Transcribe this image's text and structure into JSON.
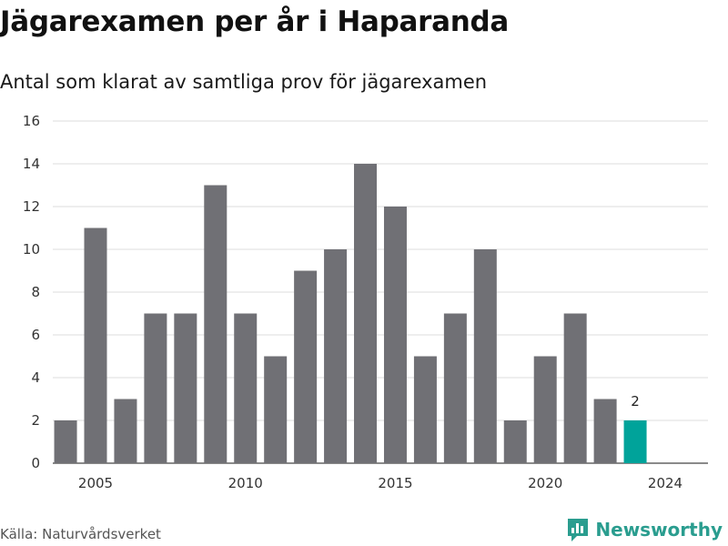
{
  "header": {
    "title": "Jägarexamen per år i Haparanda",
    "subtitle": "Antal som klarat av samtliga prov för jägarexamen"
  },
  "footer": {
    "source": "Källa: Naturvårdsverket",
    "brand": "Newsworthy",
    "brand_icon": "bar-chart-speech-bubble-icon"
  },
  "colors": {
    "bar": "#707075",
    "highlight": "#00a39a",
    "grid": "#dddddd",
    "brand": "#2a9d8f"
  },
  "chart_data": {
    "type": "bar",
    "x": [
      2004,
      2005,
      2006,
      2007,
      2008,
      2009,
      2010,
      2011,
      2012,
      2013,
      2014,
      2015,
      2016,
      2017,
      2018,
      2019,
      2020,
      2021,
      2022,
      2023,
      2024
    ],
    "values": [
      2,
      11,
      3,
      7,
      7,
      13,
      7,
      5,
      9,
      10,
      14,
      12,
      5,
      7,
      10,
      2,
      5,
      7,
      3,
      2,
      null
    ],
    "x_ticks": [
      "2005",
      "2010",
      "2015",
      "2020",
      "2024"
    ],
    "y_ticks": [
      "0",
      "2",
      "4",
      "6",
      "8",
      "10",
      "12",
      "14",
      "16"
    ],
    "ylim": [
      0,
      16
    ],
    "highlight_index": 19,
    "highlight_label": "2",
    "grid": true
  }
}
